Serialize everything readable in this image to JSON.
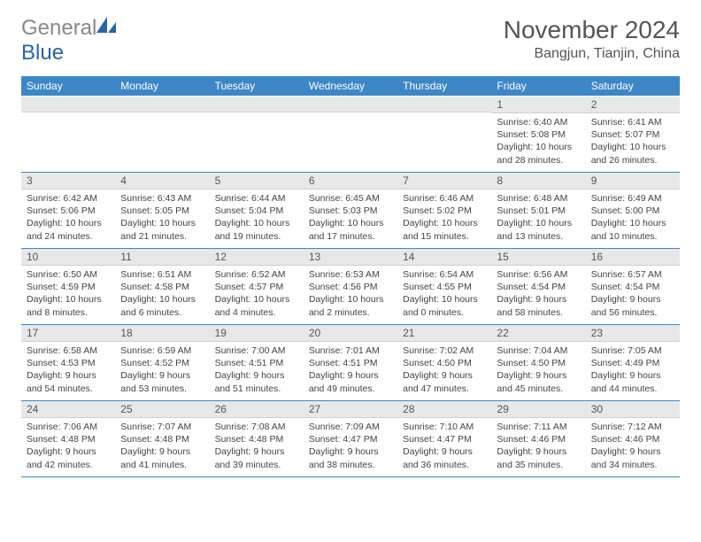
{
  "logo": {
    "part1": "General",
    "part2": "Blue"
  },
  "title": "November 2024",
  "location": "Bangjun, Tianjin, China",
  "day_headers": [
    "Sunday",
    "Monday",
    "Tuesday",
    "Wednesday",
    "Thursday",
    "Friday",
    "Saturday"
  ],
  "colors": {
    "header_bg": "#3d87c7",
    "header_fg": "#ffffff",
    "daynum_bg": "#e8e8e8",
    "border": "#3d87c7",
    "logo_blue": "#2766a3"
  },
  "weeks": [
    [
      {
        "n": "",
        "sr": "",
        "ss": "",
        "dl": ""
      },
      {
        "n": "",
        "sr": "",
        "ss": "",
        "dl": ""
      },
      {
        "n": "",
        "sr": "",
        "ss": "",
        "dl": ""
      },
      {
        "n": "",
        "sr": "",
        "ss": "",
        "dl": ""
      },
      {
        "n": "",
        "sr": "",
        "ss": "",
        "dl": ""
      },
      {
        "n": "1",
        "sr": "Sunrise: 6:40 AM",
        "ss": "Sunset: 5:08 PM",
        "dl": "Daylight: 10 hours and 28 minutes."
      },
      {
        "n": "2",
        "sr": "Sunrise: 6:41 AM",
        "ss": "Sunset: 5:07 PM",
        "dl": "Daylight: 10 hours and 26 minutes."
      }
    ],
    [
      {
        "n": "3",
        "sr": "Sunrise: 6:42 AM",
        "ss": "Sunset: 5:06 PM",
        "dl": "Daylight: 10 hours and 24 minutes."
      },
      {
        "n": "4",
        "sr": "Sunrise: 6:43 AM",
        "ss": "Sunset: 5:05 PM",
        "dl": "Daylight: 10 hours and 21 minutes."
      },
      {
        "n": "5",
        "sr": "Sunrise: 6:44 AM",
        "ss": "Sunset: 5:04 PM",
        "dl": "Daylight: 10 hours and 19 minutes."
      },
      {
        "n": "6",
        "sr": "Sunrise: 6:45 AM",
        "ss": "Sunset: 5:03 PM",
        "dl": "Daylight: 10 hours and 17 minutes."
      },
      {
        "n": "7",
        "sr": "Sunrise: 6:46 AM",
        "ss": "Sunset: 5:02 PM",
        "dl": "Daylight: 10 hours and 15 minutes."
      },
      {
        "n": "8",
        "sr": "Sunrise: 6:48 AM",
        "ss": "Sunset: 5:01 PM",
        "dl": "Daylight: 10 hours and 13 minutes."
      },
      {
        "n": "9",
        "sr": "Sunrise: 6:49 AM",
        "ss": "Sunset: 5:00 PM",
        "dl": "Daylight: 10 hours and 10 minutes."
      }
    ],
    [
      {
        "n": "10",
        "sr": "Sunrise: 6:50 AM",
        "ss": "Sunset: 4:59 PM",
        "dl": "Daylight: 10 hours and 8 minutes."
      },
      {
        "n": "11",
        "sr": "Sunrise: 6:51 AM",
        "ss": "Sunset: 4:58 PM",
        "dl": "Daylight: 10 hours and 6 minutes."
      },
      {
        "n": "12",
        "sr": "Sunrise: 6:52 AM",
        "ss": "Sunset: 4:57 PM",
        "dl": "Daylight: 10 hours and 4 minutes."
      },
      {
        "n": "13",
        "sr": "Sunrise: 6:53 AM",
        "ss": "Sunset: 4:56 PM",
        "dl": "Daylight: 10 hours and 2 minutes."
      },
      {
        "n": "14",
        "sr": "Sunrise: 6:54 AM",
        "ss": "Sunset: 4:55 PM",
        "dl": "Daylight: 10 hours and 0 minutes."
      },
      {
        "n": "15",
        "sr": "Sunrise: 6:56 AM",
        "ss": "Sunset: 4:54 PM",
        "dl": "Daylight: 9 hours and 58 minutes."
      },
      {
        "n": "16",
        "sr": "Sunrise: 6:57 AM",
        "ss": "Sunset: 4:54 PM",
        "dl": "Daylight: 9 hours and 56 minutes."
      }
    ],
    [
      {
        "n": "17",
        "sr": "Sunrise: 6:58 AM",
        "ss": "Sunset: 4:53 PM",
        "dl": "Daylight: 9 hours and 54 minutes."
      },
      {
        "n": "18",
        "sr": "Sunrise: 6:59 AM",
        "ss": "Sunset: 4:52 PM",
        "dl": "Daylight: 9 hours and 53 minutes."
      },
      {
        "n": "19",
        "sr": "Sunrise: 7:00 AM",
        "ss": "Sunset: 4:51 PM",
        "dl": "Daylight: 9 hours and 51 minutes."
      },
      {
        "n": "20",
        "sr": "Sunrise: 7:01 AM",
        "ss": "Sunset: 4:51 PM",
        "dl": "Daylight: 9 hours and 49 minutes."
      },
      {
        "n": "21",
        "sr": "Sunrise: 7:02 AM",
        "ss": "Sunset: 4:50 PM",
        "dl": "Daylight: 9 hours and 47 minutes."
      },
      {
        "n": "22",
        "sr": "Sunrise: 7:04 AM",
        "ss": "Sunset: 4:50 PM",
        "dl": "Daylight: 9 hours and 45 minutes."
      },
      {
        "n": "23",
        "sr": "Sunrise: 7:05 AM",
        "ss": "Sunset: 4:49 PM",
        "dl": "Daylight: 9 hours and 44 minutes."
      }
    ],
    [
      {
        "n": "24",
        "sr": "Sunrise: 7:06 AM",
        "ss": "Sunset: 4:48 PM",
        "dl": "Daylight: 9 hours and 42 minutes."
      },
      {
        "n": "25",
        "sr": "Sunrise: 7:07 AM",
        "ss": "Sunset: 4:48 PM",
        "dl": "Daylight: 9 hours and 41 minutes."
      },
      {
        "n": "26",
        "sr": "Sunrise: 7:08 AM",
        "ss": "Sunset: 4:48 PM",
        "dl": "Daylight: 9 hours and 39 minutes."
      },
      {
        "n": "27",
        "sr": "Sunrise: 7:09 AM",
        "ss": "Sunset: 4:47 PM",
        "dl": "Daylight: 9 hours and 38 minutes."
      },
      {
        "n": "28",
        "sr": "Sunrise: 7:10 AM",
        "ss": "Sunset: 4:47 PM",
        "dl": "Daylight: 9 hours and 36 minutes."
      },
      {
        "n": "29",
        "sr": "Sunrise: 7:11 AM",
        "ss": "Sunset: 4:46 PM",
        "dl": "Daylight: 9 hours and 35 minutes."
      },
      {
        "n": "30",
        "sr": "Sunrise: 7:12 AM",
        "ss": "Sunset: 4:46 PM",
        "dl": "Daylight: 9 hours and 34 minutes."
      }
    ]
  ]
}
